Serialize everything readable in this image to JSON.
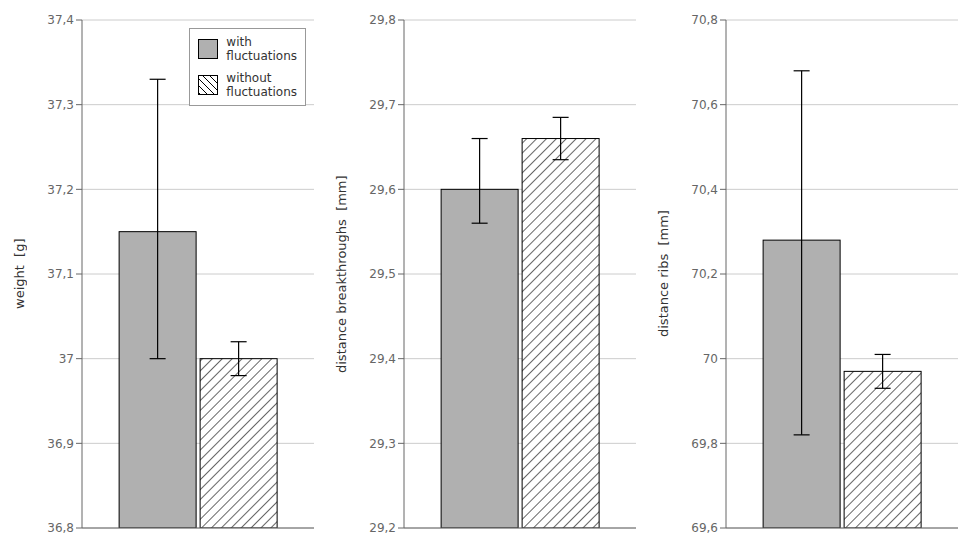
{
  "chart_data": [
    {
      "type": "bar",
      "y_label": "weight  [g]",
      "categories": [
        null
      ],
      "series": [
        {
          "name": "with\nfluctuations",
          "color": "#b0b0b0",
          "values": [
            37.15
          ],
          "err_up": [
            0.18
          ],
          "err_down": [
            0.15
          ]
        },
        {
          "name": "without\nfluctuations",
          "color": "#ffffff",
          "values": [
            37.0
          ],
          "err_up": [
            0.02
          ],
          "err_down": [
            0.02
          ]
        }
      ],
      "ylim": [
        36.8,
        37.4
      ],
      "yticks": [
        {
          "value": 36.8,
          "label": "36,8"
        },
        {
          "value": 36.9,
          "label": "36,9"
        },
        37,
        {
          "value": 37.1,
          "label": "37,1"
        },
        {
          "value": 37.2,
          "label": "37,2"
        },
        {
          "value": 37.3,
          "label": "37,3"
        },
        {
          "value": 37.4,
          "label": "37,4"
        }
      ],
      "grid": true,
      "legend": "upper right"
    },
    {
      "type": "bar",
      "y_label": "distance breakthroughs  [mm]",
      "categories": [
        null
      ],
      "series": [
        {
          "name": "with\nfluctuations",
          "color": "#b0b0b0",
          "values": [
            29.6
          ],
          "err_up": [
            0.06
          ],
          "err_down": [
            0.04
          ]
        },
        {
          "name": "without\nfluctuations",
          "color": "#ffffff",
          "values": [
            29.66
          ],
          "err_up": [
            0.025
          ],
          "err_down": [
            0.025
          ]
        }
      ],
      "ylim": [
        29.2,
        29.8
      ],
      "yticks": [
        {
          "value": 29.2,
          "label": "29,2"
        },
        {
          "value": 29.3,
          "label": "29,3"
        },
        {
          "value": 29.4,
          "label": "29,4"
        },
        {
          "value": 29.5,
          "label": "29,5"
        },
        {
          "value": 29.6,
          "label": "29,6"
        },
        {
          "value": 29.7,
          "label": "29,7"
        },
        {
          "value": 29.8,
          "label": "29,8"
        }
      ],
      "grid": true
    },
    {
      "type": "bar",
      "y_label": "distance ribs  [mm]",
      "categories": [
        null
      ],
      "series": [
        {
          "name": "with\nfluctuations",
          "color": "#b0b0b0",
          "values": [
            70.28
          ],
          "err_up": [
            0.4
          ],
          "err_down": [
            0.46
          ]
        },
        {
          "name": "without\nfluctuations",
          "color": "#ffffff",
          "values": [
            69.97
          ],
          "err_up": [
            0.04
          ],
          "err_down": [
            0.04
          ]
        }
      ],
      "ylim": [
        69.6,
        70.8
      ],
      "yticks": [
        {
          "value": 69.6,
          "label": "69,6"
        },
        {
          "value": 69.8,
          "label": "69,8"
        },
        70,
        {
          "value": 70.2,
          "label": "70,2"
        },
        {
          "value": 70.4,
          "label": "70,4"
        },
        {
          "value": 70.6,
          "label": "70,6"
        },
        {
          "value": 70.8,
          "label": "70,8"
        }
      ],
      "grid": true
    }
  ]
}
